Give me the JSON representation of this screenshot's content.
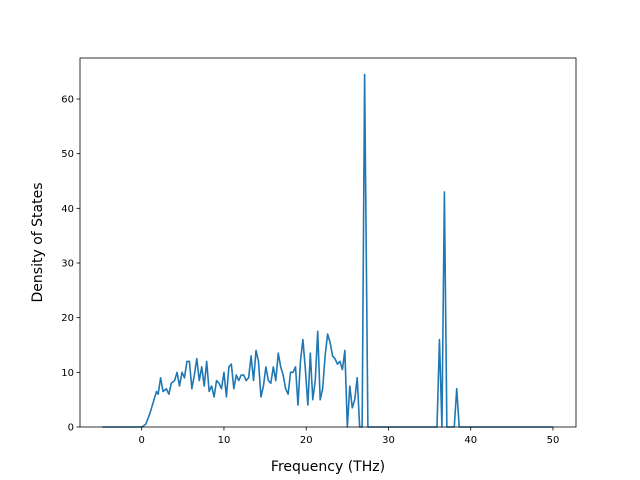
{
  "chart_data": {
    "type": "line",
    "title": "",
    "xlabel": "Frequency (THz)",
    "ylabel": "Density of States",
    "xlim": [
      -7.5,
      52.8
    ],
    "ylim": [
      0,
      67.5
    ],
    "xticks": [
      0,
      10,
      20,
      30,
      40,
      50
    ],
    "yticks": [
      0,
      10,
      20,
      30,
      40,
      50,
      60
    ],
    "grid": false,
    "legend": "none",
    "series": [
      {
        "color": "#1f77b4",
        "x": [
          -4.8,
          -1.2,
          0.0,
          0.5,
          1.0,
          1.5,
          1.8,
          2.0,
          2.3,
          2.6,
          3.0,
          3.3,
          3.6,
          4.0,
          4.3,
          4.6,
          4.9,
          5.2,
          5.5,
          5.8,
          6.1,
          6.4,
          6.7,
          7.0,
          7.3,
          7.6,
          7.9,
          8.2,
          8.5,
          8.8,
          9.1,
          9.4,
          9.7,
          10.0,
          10.3,
          10.6,
          10.9,
          11.2,
          11.5,
          11.8,
          12.1,
          12.4,
          12.7,
          13.0,
          13.3,
          13.6,
          13.9,
          14.2,
          14.5,
          14.8,
          15.1,
          15.4,
          15.7,
          16.0,
          16.3,
          16.6,
          16.9,
          17.2,
          17.5,
          17.8,
          18.1,
          18.4,
          18.7,
          19.0,
          19.3,
          19.6,
          19.9,
          20.2,
          20.5,
          20.8,
          21.1,
          21.4,
          21.7,
          22.0,
          22.3,
          22.6,
          22.9,
          23.2,
          23.5,
          23.8,
          24.1,
          24.4,
          24.7,
          25.0,
          25.3,
          25.6,
          25.9,
          26.2,
          26.5,
          26.8,
          27.1,
          27.5,
          27.8,
          28.1,
          35.6,
          35.9,
          36.2,
          36.5,
          36.8,
          37.1,
          37.4,
          37.7,
          38.0,
          38.3,
          38.6,
          39.0,
          50.0
        ],
        "y": [
          0,
          0,
          0,
          0.5,
          2.5,
          5.0,
          6.5,
          6.0,
          9.0,
          6.5,
          7.0,
          6.0,
          8.0,
          8.5,
          10.0,
          7.5,
          10.0,
          9.0,
          12.0,
          12.0,
          7.0,
          9.5,
          12.5,
          8.5,
          11.0,
          7.5,
          12.0,
          6.5,
          7.5,
          5.5,
          8.5,
          8.0,
          7.0,
          10.0,
          5.5,
          11.0,
          11.5,
          7.0,
          9.5,
          8.5,
          9.5,
          9.5,
          8.5,
          9.0,
          13.0,
          8.5,
          14.0,
          12.0,
          5.5,
          7.5,
          11.0,
          8.5,
          8.0,
          11.0,
          8.5,
          13.5,
          11.0,
          9.5,
          7.0,
          6.0,
          10.0,
          10.0,
          11.0,
          4.0,
          12.0,
          16.0,
          10.5,
          4.0,
          13.5,
          5.0,
          8.5,
          17.5,
          5.0,
          7.0,
          13.0,
          17.0,
          15.5,
          13.0,
          12.5,
          11.5,
          12.0,
          10.5,
          14.0,
          0,
          7.5,
          3.5,
          5.0,
          9.0,
          0,
          0,
          64.5,
          0,
          0,
          0,
          0,
          0,
          16.0,
          0,
          43.0,
          0,
          0,
          0,
          0,
          7.0,
          0,
          0,
          0
        ]
      }
    ]
  }
}
